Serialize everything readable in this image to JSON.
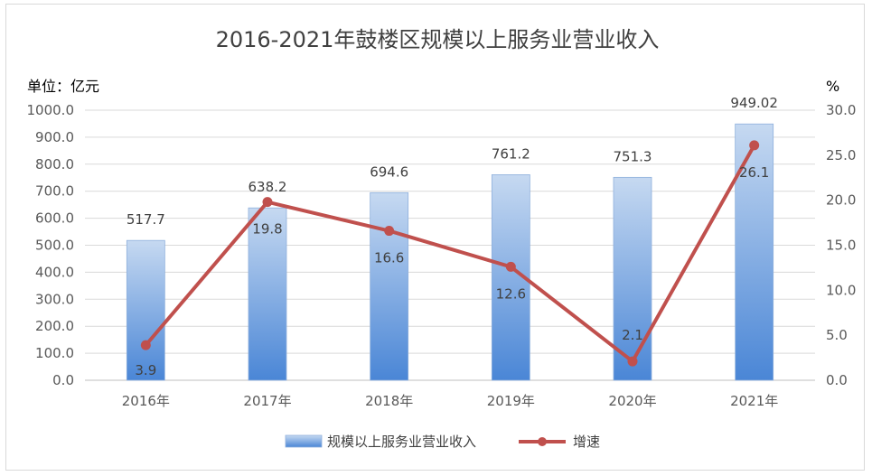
{
  "chart_data": {
    "type": "bar+line",
    "title": "2016-2021年鼓楼区规模以上服务业营业收入",
    "ylabel_left": "单位：亿元",
    "ylabel_right": "%",
    "categories": [
      "2016年",
      "2017年",
      "2018年",
      "2019年",
      "2020年",
      "2021年"
    ],
    "y_left_ticks": [
      "0.0",
      "100.0",
      "200.0",
      "300.0",
      "400.0",
      "500.0",
      "600.0",
      "700.0",
      "800.0",
      "900.0",
      "1000.0"
    ],
    "y_right_ticks": [
      "0.0",
      "5.0",
      "10.0",
      "15.0",
      "20.0",
      "25.0",
      "30.0"
    ],
    "ylim_left": [
      0,
      1000
    ],
    "ylim_right": [
      0,
      30
    ],
    "grid": true,
    "legend_position": "bottom",
    "series": [
      {
        "name": "规模以上服务业营业收入",
        "type": "bar",
        "axis": "left",
        "values": [
          517.7,
          638.2,
          694.6,
          761.2,
          751.3,
          949.02
        ],
        "labels": [
          "517.7",
          "638.2",
          "694.6",
          "761.2",
          "751.3",
          "949.02"
        ],
        "color_top": "#c6d9f1",
        "color_bottom": "#4a86d6"
      },
      {
        "name": "增速",
        "type": "line",
        "axis": "right",
        "values": [
          3.9,
          19.8,
          16.6,
          12.6,
          2.1,
          26.1
        ],
        "labels": [
          "3.9",
          "19.8",
          "16.6",
          "12.6",
          "2.1",
          "26.1"
        ],
        "color": "#c0504d"
      }
    ]
  }
}
